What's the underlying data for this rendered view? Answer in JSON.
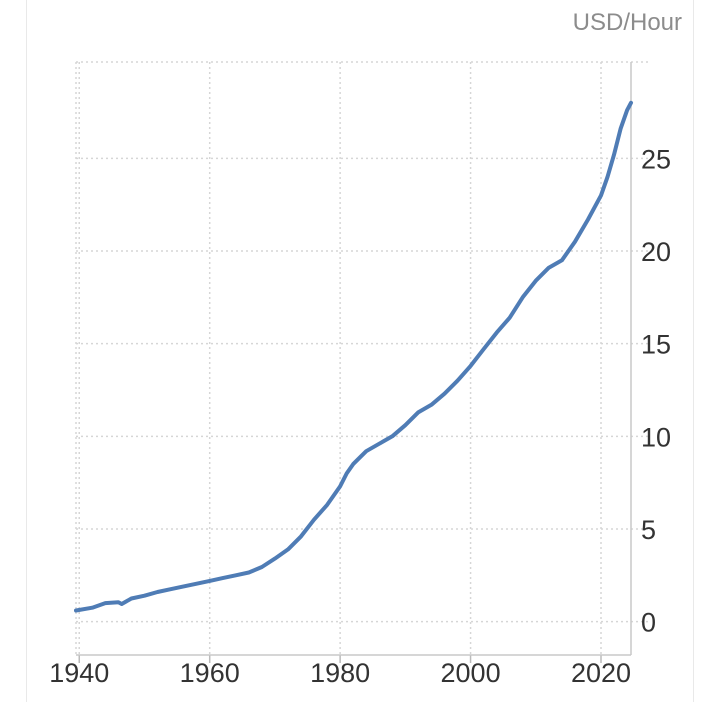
{
  "chart_data": {
    "type": "line",
    "unit_label": "USD/Hour",
    "title": "",
    "xlabel": "",
    "ylabel": "",
    "xlim": [
      1939.5,
      2024.6
    ],
    "ylim": [
      -1.8,
      30.2
    ],
    "x_ticks": [
      1940,
      1960,
      1980,
      2000,
      2020
    ],
    "y_ticks": [
      0,
      5,
      10,
      15,
      20,
      25
    ],
    "y_axis_position": "right",
    "grid": true,
    "line_color": "#4f7cb5",
    "series": [
      {
        "x": [
          1939.5,
          1942,
          1944,
          1946,
          1946.5,
          1948,
          1950,
          1952,
          1954,
          1956,
          1958,
          1960,
          1962,
          1964,
          1966,
          1968,
          1970,
          1972,
          1974,
          1976,
          1978,
          1980,
          1981,
          1982,
          1984,
          1986,
          1988,
          1990,
          1992,
          1994,
          1996,
          1998,
          2000,
          2002,
          2004,
          2006,
          2008,
          2010,
          2012,
          2014,
          2016,
          2018,
          2020,
          2021,
          2022,
          2023,
          2024,
          2024.6
        ],
        "values": [
          0.6,
          0.75,
          1.0,
          1.05,
          0.95,
          1.25,
          1.4,
          1.6,
          1.75,
          1.9,
          2.05,
          2.2,
          2.35,
          2.5,
          2.65,
          2.95,
          3.4,
          3.9,
          4.6,
          5.5,
          6.3,
          7.3,
          8.0,
          8.5,
          9.2,
          9.6,
          10.0,
          10.6,
          11.3,
          11.7,
          12.3,
          13.0,
          13.8,
          14.7,
          15.6,
          16.4,
          17.5,
          18.4,
          19.1,
          19.5,
          20.5,
          21.7,
          23.0,
          24.0,
          25.2,
          26.6,
          27.6,
          28.0
        ]
      }
    ]
  }
}
